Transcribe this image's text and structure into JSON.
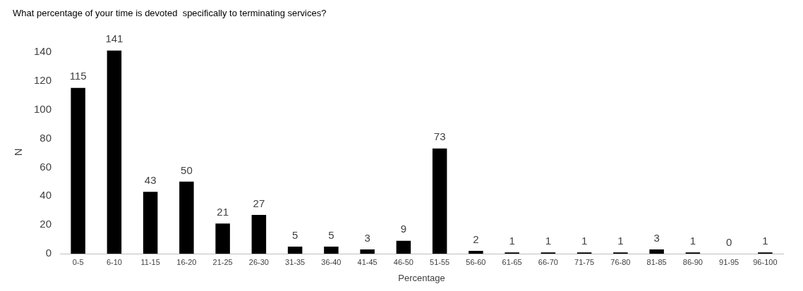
{
  "chart_data": {
    "type": "bar",
    "title": "What percentage of your time is devoted  specifically to terminating services?",
    "xlabel": "Percentage",
    "ylabel": "N",
    "categories": [
      "0-5",
      "6-10",
      "11-15",
      "16-20",
      "21-25",
      "26-30",
      "31-35",
      "36-40",
      "41-45",
      "46-50",
      "51-55",
      "56-60",
      "61-65",
      "66-70",
      "71-75",
      "76-80",
      "81-85",
      "86-90",
      "91-95",
      "96-100"
    ],
    "values": [
      115,
      141,
      43,
      50,
      21,
      27,
      5,
      5,
      3,
      9,
      73,
      2,
      1,
      1,
      1,
      1,
      3,
      1,
      0,
      1
    ],
    "color": "#000000",
    "ylim": [
      0,
      141
    ],
    "yticks": [
      0,
      20,
      40,
      60,
      80,
      100,
      120,
      140
    ],
    "grid": false,
    "legend": false,
    "data_labels": true
  }
}
